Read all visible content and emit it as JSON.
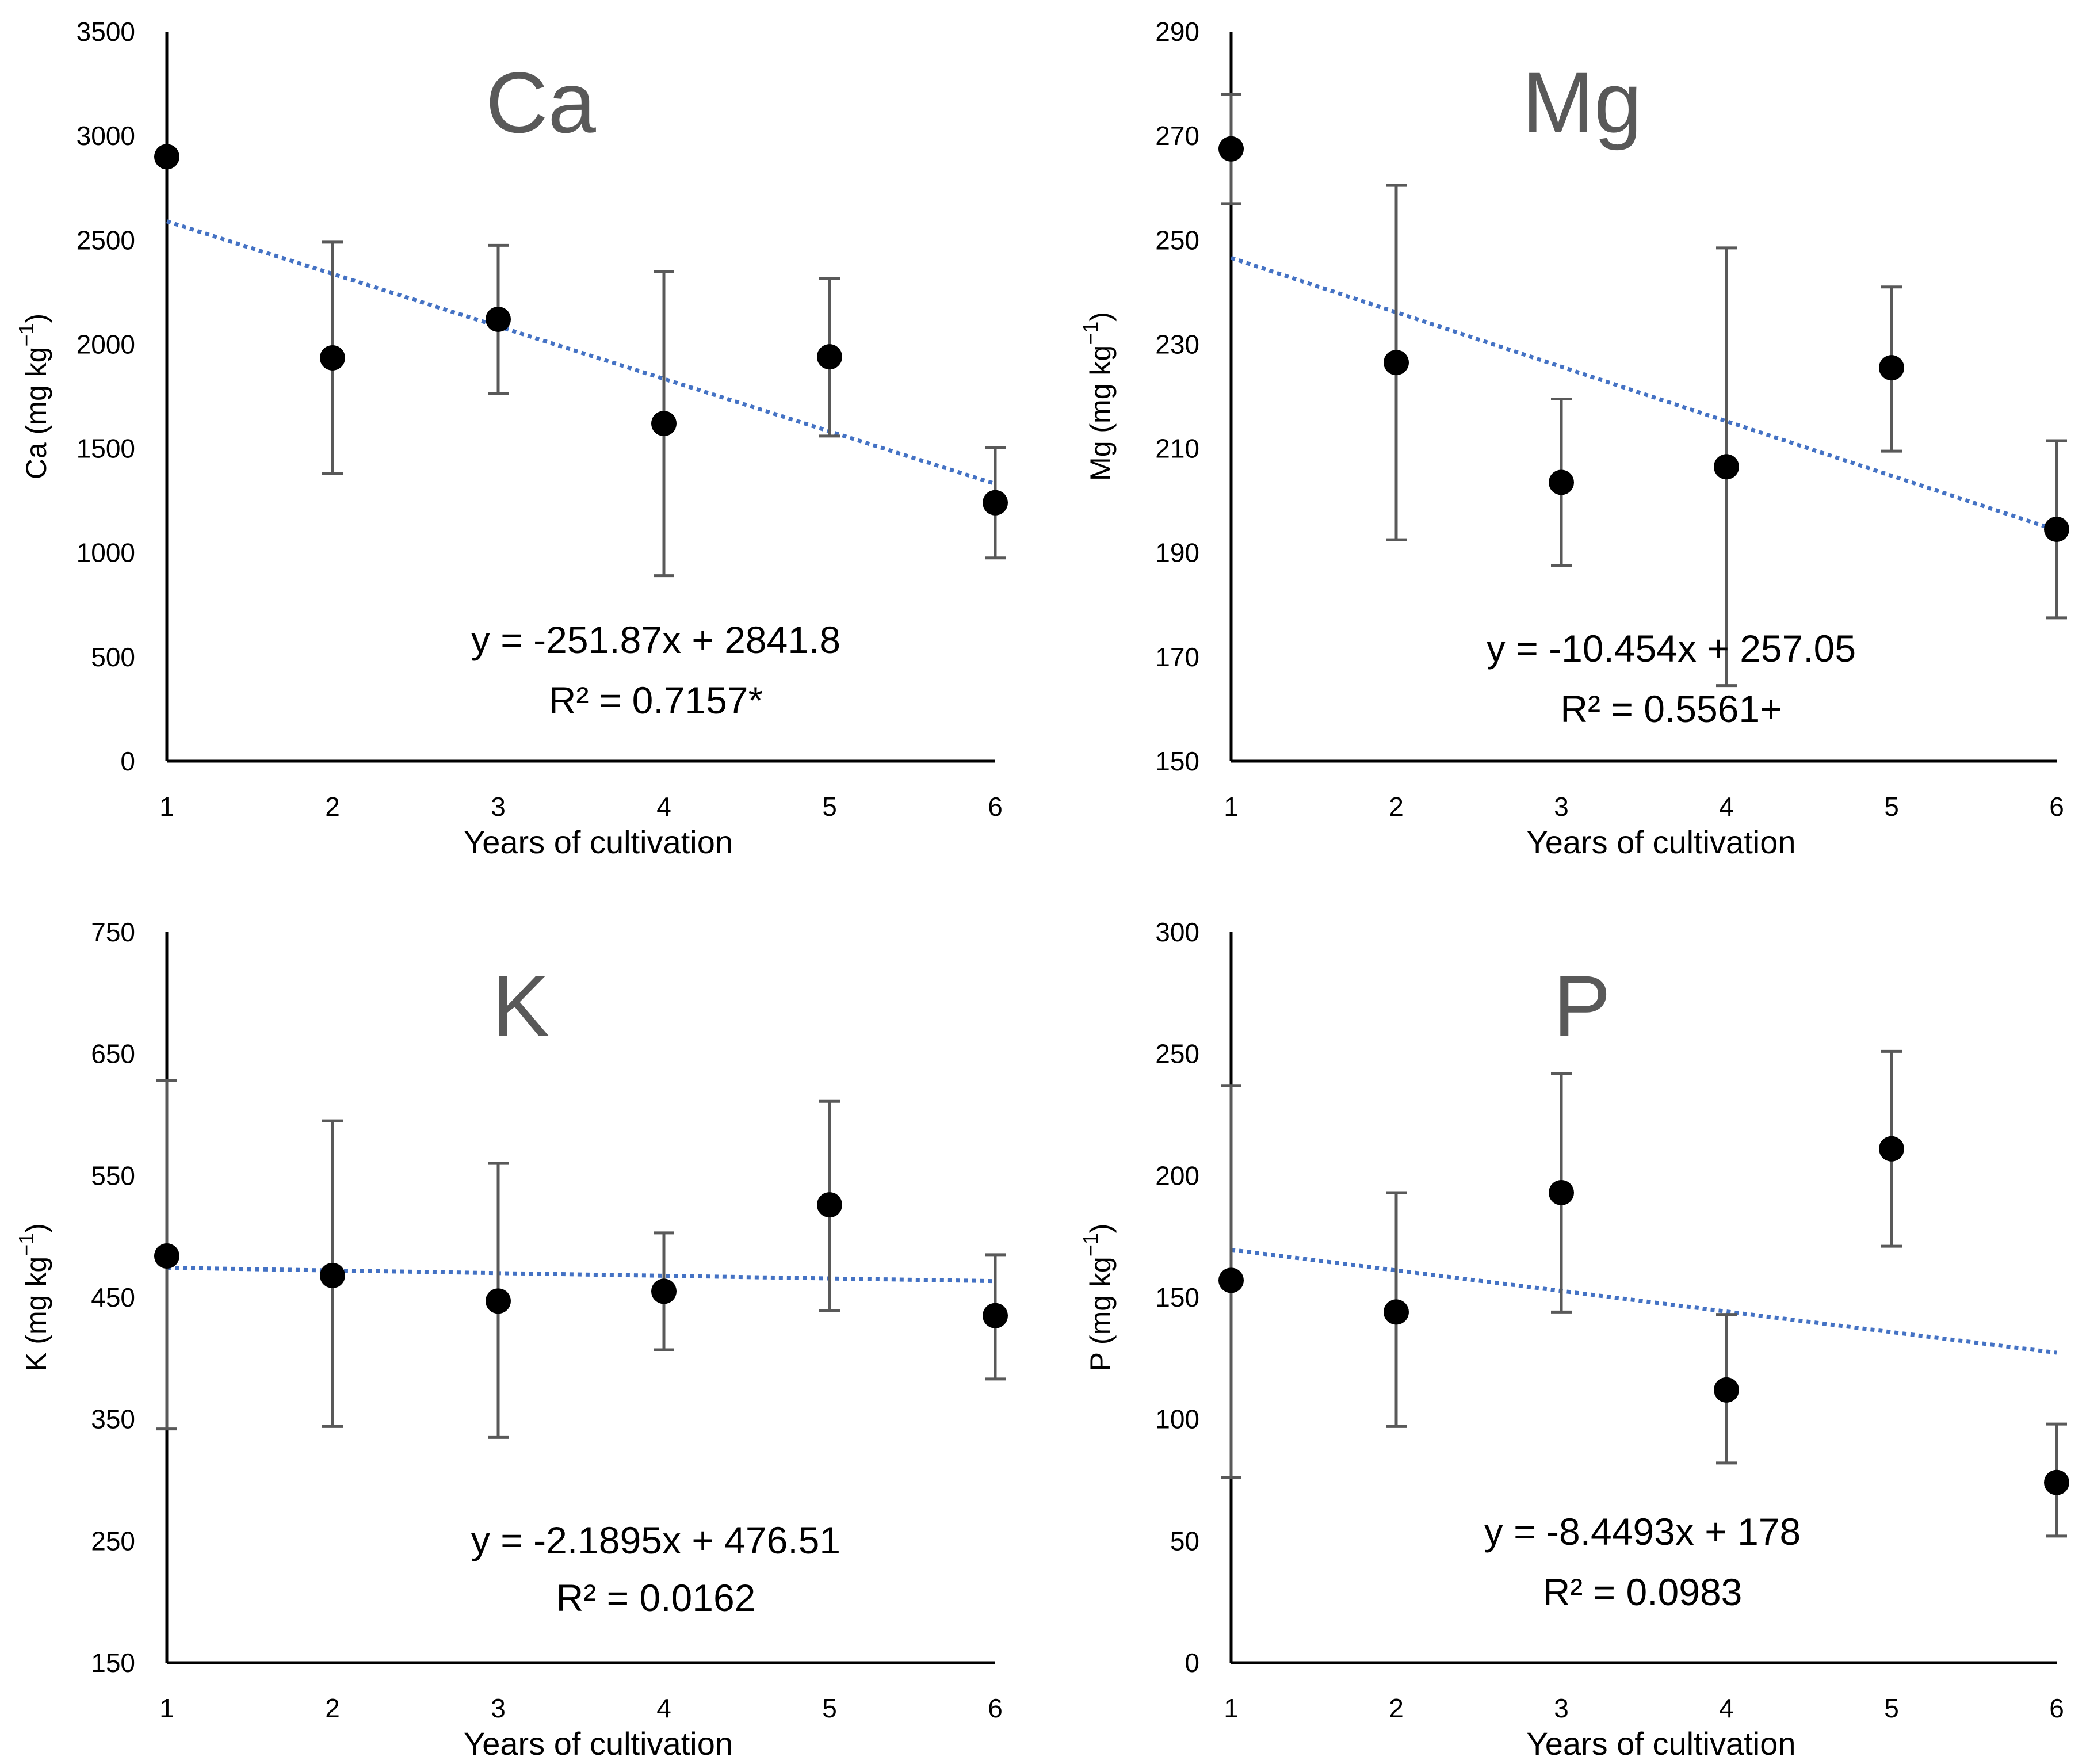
{
  "chart_data": [
    {
      "type": "scatter",
      "title": "Ca",
      "xlabel": "Years of cultivation",
      "ylabel_main": "Ca (mg kg",
      "ylabel_sup": "−1",
      "ylabel_close": ")",
      "xlim": [
        1,
        6
      ],
      "ylim": [
        0,
        3500
      ],
      "xticks": [
        "1",
        "2",
        "3",
        "4",
        "5",
        "6"
      ],
      "yticks": [
        "0",
        "500",
        "1000",
        "1500",
        "2000",
        "2500",
        "3000",
        "3500"
      ],
      "x": [
        1,
        2,
        3,
        4,
        5,
        6
      ],
      "y": [
        2900,
        1935,
        2120,
        1620,
        1940,
        1240
      ],
      "error_low": [
        null,
        1380,
        1765,
        890,
        1560,
        975
      ],
      "error_high": [
        null,
        2490,
        2475,
        2350,
        2315,
        1505
      ],
      "trendline": {
        "slope": -251.87,
        "intercept": 2841.8,
        "style": "dotted",
        "color": "#4472C4"
      },
      "equation": "y = -251.87x + 2841.8",
      "r2": "R² = 0.7157*",
      "grid": false,
      "legend": "none",
      "marker_color": "#000000",
      "errorbar_color": "#595959"
    },
    {
      "type": "scatter",
      "title": "Mg",
      "xlabel": "Years of cultivation",
      "ylabel_main": "Mg (mg kg",
      "ylabel_sup": "−1",
      "ylabel_close": ")",
      "xlim": [
        1,
        6
      ],
      "ylim": [
        150,
        290
      ],
      "xticks": [
        "1",
        "2",
        "3",
        "4",
        "5",
        "6"
      ],
      "yticks": [
        "150",
        "170",
        "190",
        "210",
        "230",
        "250",
        "270",
        "290"
      ],
      "x": [
        1,
        2,
        3,
        4,
        5,
        6
      ],
      "y": [
        267.5,
        226.5,
        203.5,
        206.5,
        225.5,
        194.5
      ],
      "error_low": [
        257,
        192.5,
        187.5,
        164.5,
        209.5,
        177.5
      ],
      "error_high": [
        278,
        260.5,
        219.5,
        248.5,
        241,
        211.5
      ],
      "trendline": {
        "slope": -10.454,
        "intercept": 257.05,
        "style": "dotted",
        "color": "#4472C4"
      },
      "equation": "y = -10.454x + 257.05",
      "r2": "R² = 0.5561+",
      "grid": false,
      "legend": "none",
      "marker_color": "#000000",
      "errorbar_color": "#595959"
    },
    {
      "type": "scatter",
      "title": "K",
      "xlabel": "Years of cultivation",
      "ylabel_main": "K (mg kg",
      "ylabel_sup": "−1",
      "ylabel_close": ")",
      "xlim": [
        1,
        6
      ],
      "ylim": [
        150,
        750
      ],
      "xticks": [
        "1",
        "2",
        "3",
        "4",
        "5",
        "6"
      ],
      "yticks": [
        "150",
        "250",
        "350",
        "450",
        "550",
        "650",
        "750"
      ],
      "x": [
        1,
        2,
        3,
        4,
        5,
        6
      ],
      "y": [
        484,
        468,
        447,
        455,
        526,
        435
      ],
      "error_low": [
        342,
        344,
        335,
        407,
        439,
        383
      ],
      "error_high": [
        628,
        595,
        560,
        503,
        611,
        485
      ],
      "trendline": {
        "slope": -2.1895,
        "intercept": 476.51,
        "style": "dotted",
        "color": "#4472C4"
      },
      "equation": "y = -2.1895x + 476.51",
      "r2": "R² = 0.0162",
      "grid": false,
      "legend": "none",
      "marker_color": "#000000",
      "errorbar_color": "#595959"
    },
    {
      "type": "scatter",
      "title": "P",
      "xlabel": "Years of cultivation",
      "ylabel_main": "P (mg kg",
      "ylabel_sup": "−1",
      "ylabel_close": ")",
      "xlim": [
        1,
        6
      ],
      "ylim": [
        0,
        300
      ],
      "xticks": [
        "1",
        "2",
        "3",
        "4",
        "5",
        "6"
      ],
      "yticks": [
        "0",
        "50",
        "100",
        "150",
        "200",
        "250",
        "300"
      ],
      "x": [
        1,
        2,
        3,
        4,
        5,
        6
      ],
      "y": [
        157,
        144,
        193,
        112,
        211,
        74
      ],
      "error_low": [
        76,
        97,
        144,
        82,
        171,
        52
      ],
      "error_high": [
        237,
        193,
        242,
        143,
        251,
        98
      ],
      "trendline": {
        "slope": -8.4493,
        "intercept": 178,
        "style": "dotted",
        "color": "#4472C4"
      },
      "equation": "y = -8.4493x + 178",
      "r2": "R² = 0.0983",
      "grid": false,
      "legend": "none",
      "marker_color": "#000000",
      "errorbar_color": "#595959"
    }
  ]
}
